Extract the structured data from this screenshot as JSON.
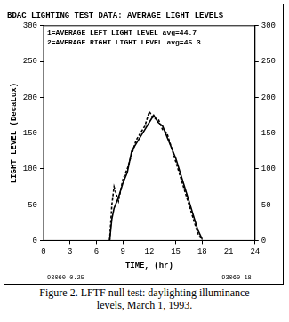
{
  "chart_data": {
    "type": "line",
    "title": "BDAC LIGHTING TEST DATA: AVERAGE LIGHT LEVELS",
    "x_label": "TIME, (hr)",
    "y_label": "LIGHT LEVEL (DecaLux)",
    "caption": "Figure 2.  LFTF null test: daylighting illuminance levels, March 1, 1993.",
    "annotations": [
      "93060 0.25",
      "93060 18"
    ],
    "x": [
      7.5,
      7.75,
      8,
      8.5,
      9,
      9.5,
      10,
      10.5,
      11,
      11.5,
      12,
      12.5,
      13,
      13.5,
      14,
      14.5,
      15,
      15.5,
      16,
      16.5,
      17,
      17.5,
      18
    ],
    "series": [
      {
        "name": "1=AVERAGE LEFT LIGHT LEVEL avg=44.7",
        "color": "#000000",
        "line_style": "solid",
        "marker": "none",
        "values": [
          0,
          30,
          45,
          60,
          80,
          95,
          125,
          135,
          145,
          155,
          165,
          175,
          165,
          160,
          145,
          130,
          115,
          95,
          75,
          55,
          35,
          15,
          2
        ]
      },
      {
        "name": "2=AVERAGE RIGHT LIGHT LEVEL avg=45.3",
        "color": "#000000",
        "line_style": "dashed",
        "marker": "none",
        "values": [
          0,
          50,
          75,
          55,
          85,
          100,
          120,
          140,
          150,
          160,
          180,
          170,
          170,
          155,
          150,
          130,
          110,
          90,
          70,
          50,
          30,
          10,
          0
        ]
      }
    ],
    "xlim": [
      0,
      24
    ],
    "xticks": [
      0,
      3,
      6,
      9,
      12,
      15,
      18,
      21,
      24
    ],
    "ylim": [
      0,
      300
    ],
    "yticks": [
      0,
      50,
      100,
      150,
      200,
      250,
      300
    ],
    "y2lim": [
      0,
      300
    ],
    "y2ticks": [
      0,
      50,
      100,
      150,
      200,
      250,
      300
    ],
    "grid": false,
    "legend": "upper left"
  }
}
